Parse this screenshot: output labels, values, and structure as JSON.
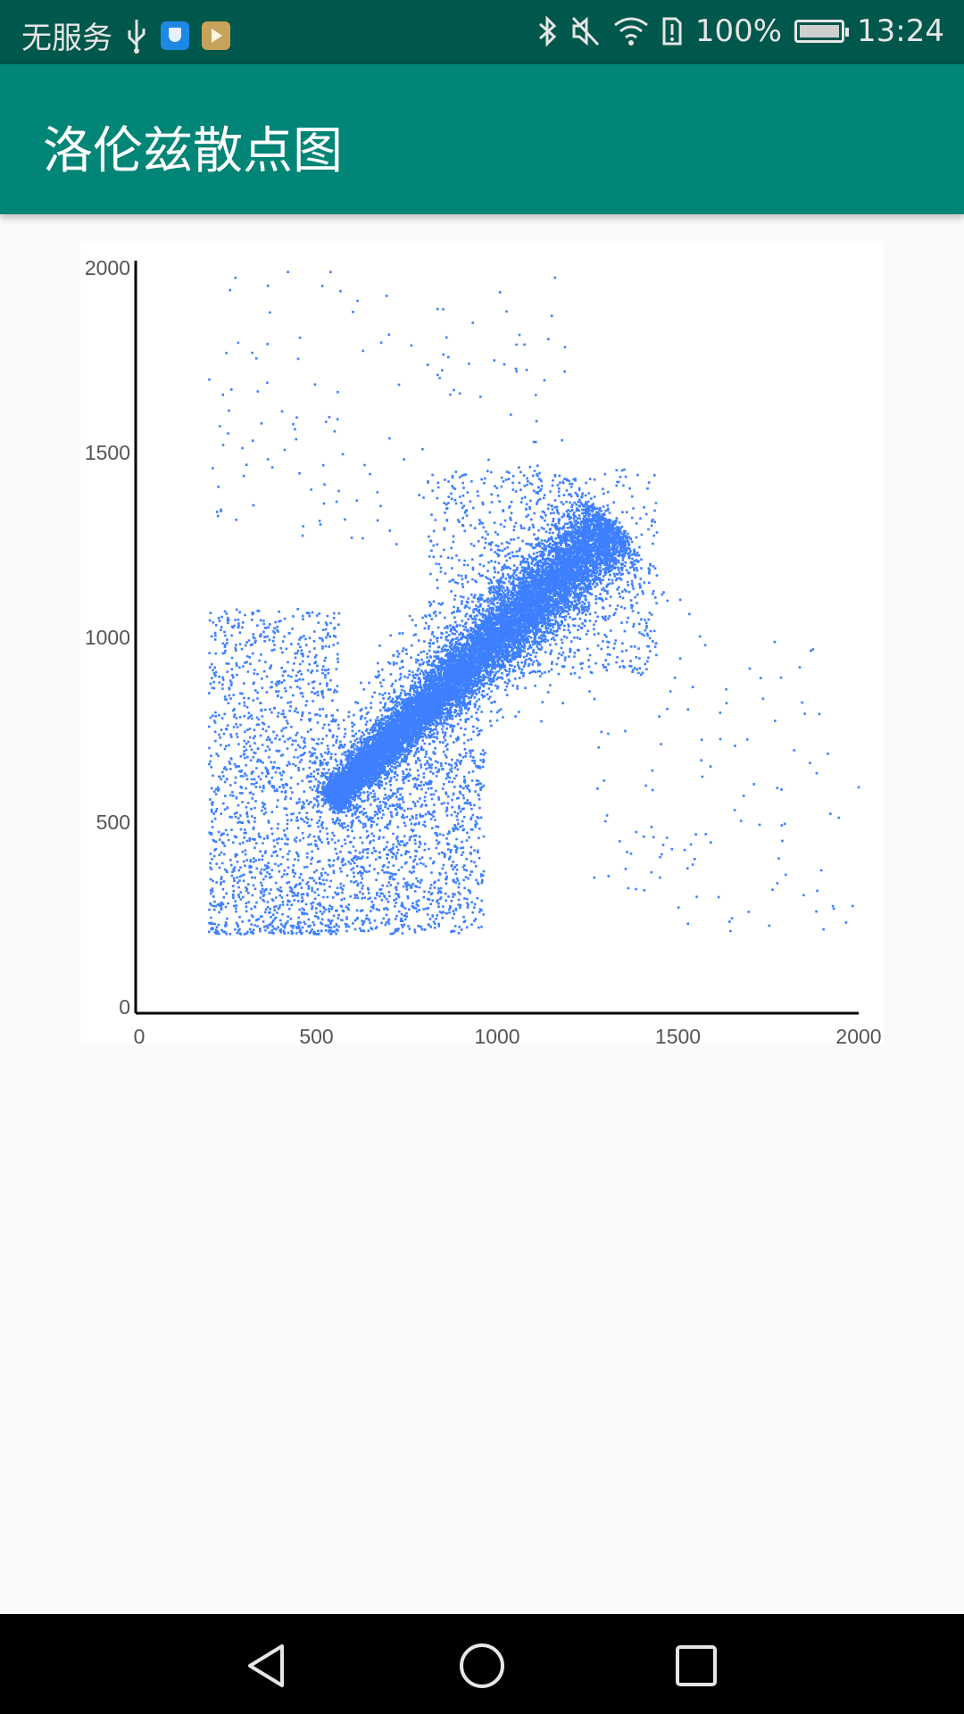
{
  "status_bar": {
    "carrier": "无服务",
    "battery": "100%",
    "time": "13:24"
  },
  "app_bar": {
    "title": "洛伦兹散点图"
  },
  "colors": {
    "status_bar": "#00574b",
    "app_bar": "#008577",
    "point": "#3d7fff"
  },
  "chart_data": {
    "type": "scatter",
    "xlim": [
      0,
      2000
    ],
    "ylim": [
      0,
      2000
    ],
    "x_ticks": [
      "0",
      "500",
      "1000",
      "1500",
      "2000"
    ],
    "y_ticks": [
      "0",
      "500",
      "1000",
      "1500",
      "2000"
    ],
    "grid": false,
    "point_color": "#3d7fff",
    "dense_band": {
      "start": [
        530,
        560
      ],
      "end": [
        1320,
        1310
      ]
    },
    "clusters": [
      {
        "name": "low-left",
        "x_range": [
          200,
          560
        ],
        "y_range": [
          200,
          1080
        ]
      },
      {
        "name": "low-middle",
        "x_range": [
          560,
          960
        ],
        "y_range": [
          200,
          700
        ]
      },
      {
        "name": "upper-middle",
        "x_range": [
          800,
          1440
        ],
        "y_range": [
          900,
          1460
        ]
      },
      {
        "name": "upper-left-sparse",
        "x_range": [
          200,
          1200
        ],
        "y_range": [
          1250,
          2000
        ]
      },
      {
        "name": "right-sparse",
        "x_range": [
          1250,
          2000
        ],
        "y_range": [
          200,
          1000
        ]
      }
    ]
  },
  "nav_bar": {
    "icons": [
      "back-icon",
      "home-icon",
      "recent-apps-icon"
    ]
  }
}
